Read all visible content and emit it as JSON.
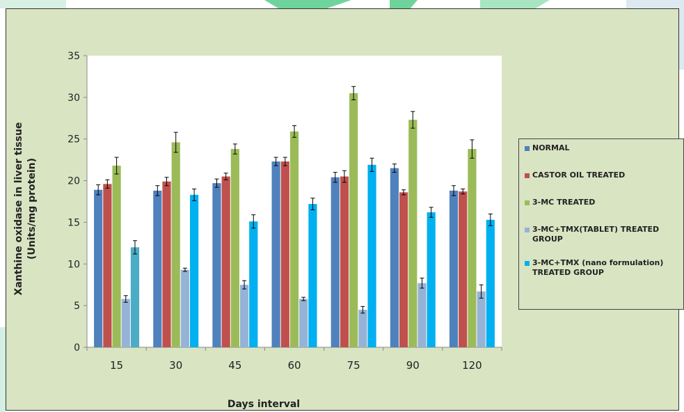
{
  "chart_data": {
    "type": "bar",
    "xlabel": "Days interval",
    "ylabel_line1": "Xanthine oxidase in liver tissue",
    "ylabel_line2": "(Units/mg protein)",
    "categories": [
      "15",
      "30",
      "45",
      "60",
      "75",
      "90",
      "120"
    ],
    "ylim": [
      0,
      35
    ],
    "yticks": [
      "0",
      "5",
      "10",
      "15",
      "20",
      "25",
      "30",
      "35"
    ],
    "grid": false,
    "legend_position": "right",
    "series": [
      {
        "name": "NORMAL",
        "color": "#4f81bd",
        "values": [
          18.9,
          18.8,
          19.7,
          22.3,
          20.4,
          21.5,
          18.8
        ],
        "errors": [
          0.6,
          0.6,
          0.5,
          0.5,
          0.6,
          0.5,
          0.6
        ]
      },
      {
        "name": "CASTOR OIL TREATED",
        "color": "#c0504d",
        "values": [
          19.6,
          19.9,
          20.5,
          22.3,
          20.5,
          18.6,
          18.7
        ],
        "errors": [
          0.5,
          0.5,
          0.4,
          0.5,
          0.7,
          0.3,
          0.3
        ]
      },
      {
        "name": "3-MC TREATED",
        "color": "#9bbb59",
        "values": [
          21.8,
          24.6,
          23.8,
          25.9,
          30.5,
          27.3,
          23.8
        ],
        "errors": [
          1.0,
          1.2,
          0.6,
          0.7,
          0.8,
          1.0,
          1.1
        ]
      },
      {
        "name": "3-MC+TMX(TABLET) TREATED GROUP",
        "color": "#95b3d7",
        "values": [
          5.8,
          9.3,
          7.5,
          5.8,
          4.5,
          7.7,
          6.7
        ],
        "errors": [
          0.4,
          0.2,
          0.5,
          0.2,
          0.4,
          0.6,
          0.8
        ]
      },
      {
        "name": "3-MC+TMX (nano formulation) TREATED GROUP",
        "color": "#00b0f0",
        "values": [
          12.0,
          18.3,
          15.1,
          17.2,
          21.9,
          16.2,
          15.3
        ],
        "errors": [
          0.8,
          0.7,
          0.8,
          0.7,
          0.8,
          0.6,
          0.7
        ],
        "first_bar_color": "#4bacc6"
      }
    ]
  }
}
